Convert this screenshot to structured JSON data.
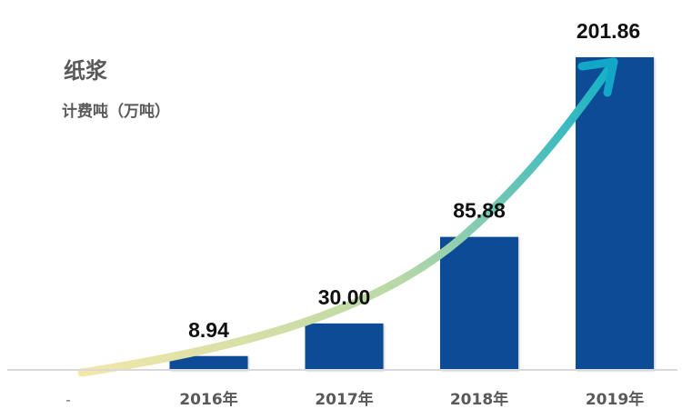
{
  "chart_data": {
    "type": "bar",
    "title": "纸浆",
    "subtitle": "计费吨（万吨）",
    "categories": [
      "2016年",
      "2017年",
      "2018年",
      "2019年"
    ],
    "values": [
      8.94,
      30.0,
      85.88,
      201.86
    ],
    "value_labels": [
      "8.94",
      "30.00",
      "85.88",
      "201.86"
    ],
    "origin_label": "-",
    "ylim": [
      0,
      201.86
    ],
    "grid": false,
    "legend": "none",
    "trend_arrow": true,
    "colors": {
      "bar": "#0f4c96",
      "axis": "#d9d9d9",
      "arrow_start": "#f4e7a8",
      "arrow_mid": "#b8d8a6",
      "arrow_end": "#10b0c8"
    }
  }
}
